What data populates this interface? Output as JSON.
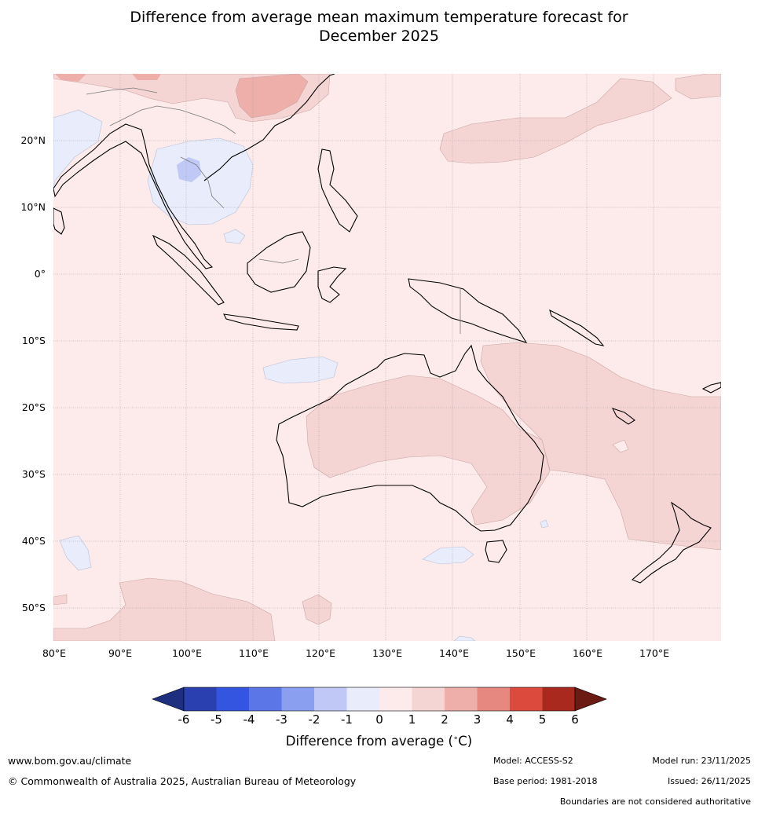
{
  "title_line1": "Difference from average mean maximum temperature forecast for",
  "title_line2": "December 2025",
  "latitude_labels": [
    "20°N",
    "10°N",
    "0°",
    "10°S",
    "20°S",
    "30°S",
    "40°S",
    "50°S"
  ],
  "longitude_labels": [
    "80°E",
    "90°E",
    "100°E",
    "110°E",
    "120°E",
    "130°E",
    "140°E",
    "150°E",
    "160°E",
    "170°E"
  ],
  "colorbar": {
    "ticks": [
      "-6",
      "-5",
      "-4",
      "-3",
      "-2",
      "-1",
      "0",
      "1",
      "2",
      "3",
      "4",
      "5",
      "6"
    ],
    "colors": [
      "#1f2f80",
      "#2a3fb0",
      "#3355e0",
      "#5b76e6",
      "#8a9ff0",
      "#c0c9f5",
      "#e8ecfb",
      "#fcebea",
      "#f5d5d4",
      "#eeaeaa",
      "#e68880",
      "#dc4a3e",
      "#a9291e",
      "#6b1a14"
    ],
    "label": "Difference from average (°C)",
    "label_text": "Difference from average (",
    "label_unit": "∘",
    "label_end": "C)"
  },
  "footer": {
    "website": "www.bom.gov.au/climate",
    "copyright": "© Commonwealth of Australia 2025, Australian Bureau of Meteorology",
    "model": "Model: ACCESS-S2",
    "base_period": "Base period: 1981-2018",
    "model_run": "Model run: 23/11/2025",
    "issued": "Issued: 26/11/2025",
    "disclaimer": "Boundaries are not considered authoritative"
  }
}
